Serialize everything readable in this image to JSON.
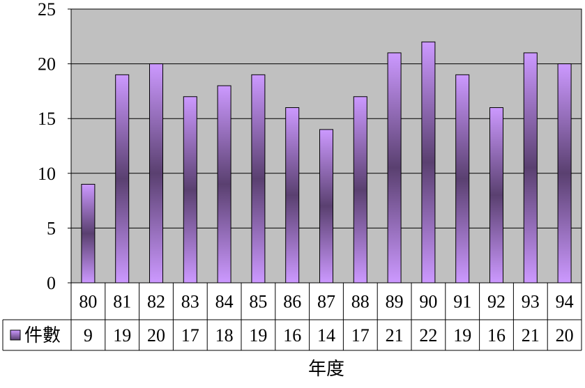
{
  "chart_data": {
    "type": "bar",
    "categories": [
      "80",
      "81",
      "82",
      "83",
      "84",
      "85",
      "86",
      "87",
      "88",
      "89",
      "90",
      "91",
      "92",
      "93",
      "94"
    ],
    "series": [
      {
        "name": "件數",
        "values": [
          9,
          19,
          20,
          17,
          18,
          19,
          16,
          14,
          17,
          21,
          22,
          19,
          16,
          21,
          20
        ]
      }
    ],
    "title": "",
    "xlabel": "年度",
    "ylabel": "",
    "ylim": [
      0,
      25
    ],
    "yticks": [
      "0",
      "5",
      "10",
      "15",
      "20",
      "25"
    ],
    "grid": true,
    "legend": "data-table-left",
    "data_table": true,
    "colors": {
      "plot_background": "#c0c0c0",
      "bar_light": "#cc99ff",
      "bar_dark": "#5a4070",
      "gridline": "#000000"
    }
  }
}
